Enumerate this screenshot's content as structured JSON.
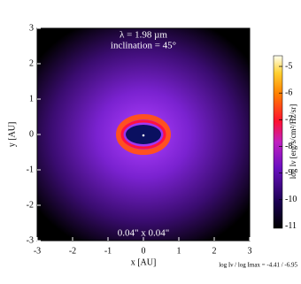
{
  "chart_data": {
    "type": "image",
    "annotations": [
      "λ = 1.98 µm",
      "inclination = 45°",
      "0.04\" x 0.04\""
    ],
    "xlabel": "x [AU]",
    "ylabel": "y [AU]",
    "xlim": [
      -3,
      3
    ],
    "ylim": [
      -3,
      3
    ],
    "xticks": [
      -3,
      -2,
      -1,
      0,
      1,
      2,
      3
    ],
    "yticks": [
      -3,
      -2,
      -1,
      0,
      1,
      2,
      3
    ],
    "colorbar_label": "log Iν [erg/s/cm²/Hz/sr]",
    "clim": [
      -11.07,
      -4.6
    ],
    "cbticks": [
      -11,
      -10,
      -9,
      -8,
      -7,
      -6,
      -5
    ],
    "footer": "log Iν / log Imax = -4.41 / -6.95"
  }
}
